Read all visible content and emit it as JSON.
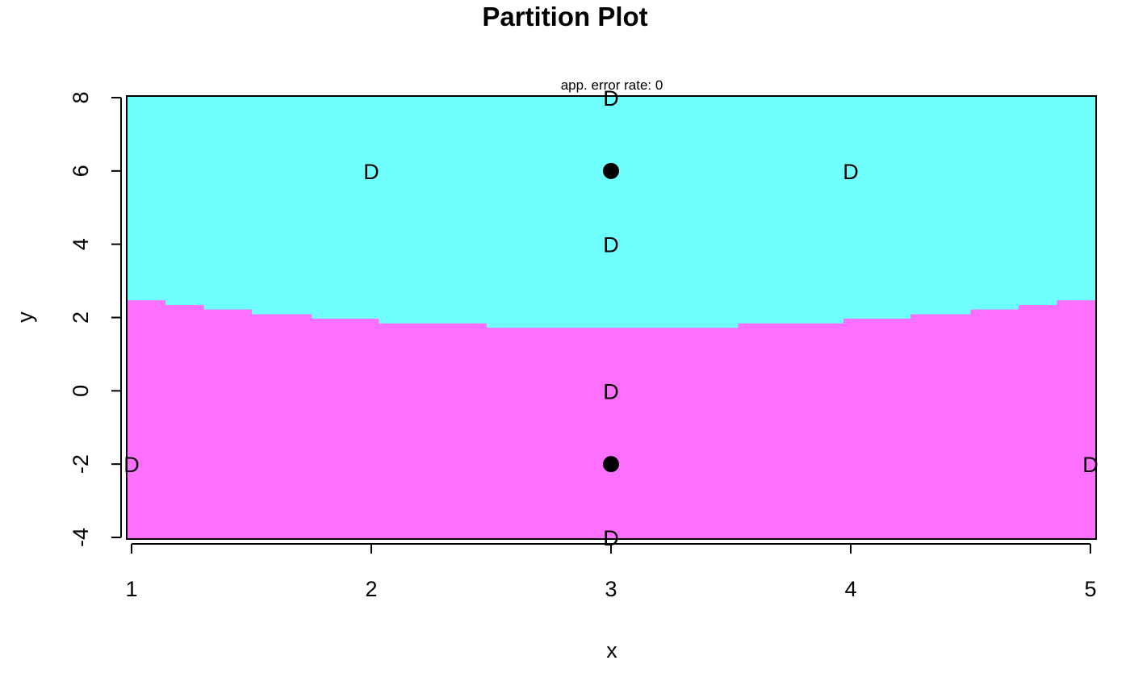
{
  "chart_data": {
    "type": "scatter",
    "title": "Partition Plot",
    "subtitle": "app. error rate: 0",
    "xlabel": "x",
    "ylabel": "y",
    "xlim": [
      1,
      5
    ],
    "ylim": [
      -4,
      8
    ],
    "xticks": [
      1,
      2,
      3,
      4,
      5
    ],
    "yticks": [
      -4,
      -2,
      0,
      2,
      4,
      6,
      8
    ],
    "regions": [
      {
        "name": "upper",
        "color": "#6ffffd"
      },
      {
        "name": "lower",
        "color": "#fd6ffd"
      }
    ],
    "boundary": [
      {
        "x1": 1.0,
        "x2": 1.14,
        "y": 2.47
      },
      {
        "x1": 1.14,
        "x2": 1.3,
        "y": 2.34
      },
      {
        "x1": 1.3,
        "x2": 1.5,
        "y": 2.22
      },
      {
        "x1": 1.5,
        "x2": 1.75,
        "y": 2.09
      },
      {
        "x1": 1.75,
        "x2": 2.03,
        "y": 1.97
      },
      {
        "x1": 2.03,
        "x2": 2.48,
        "y": 1.84
      },
      {
        "x1": 2.48,
        "x2": 3.53,
        "y": 1.72
      },
      {
        "x1": 3.53,
        "x2": 3.97,
        "y": 1.84
      },
      {
        "x1": 3.97,
        "x2": 4.25,
        "y": 1.97
      },
      {
        "x1": 4.25,
        "x2": 4.5,
        "y": 2.09
      },
      {
        "x1": 4.5,
        "x2": 4.7,
        "y": 2.22
      },
      {
        "x1": 4.7,
        "x2": 4.86,
        "y": 2.34
      },
      {
        "x1": 4.86,
        "x2": 5.0,
        "y": 2.47
      }
    ],
    "points": [
      {
        "x": 3,
        "y": 8,
        "label": "D"
      },
      {
        "x": 2,
        "y": 6,
        "label": "D"
      },
      {
        "x": 4,
        "y": 6,
        "label": "D"
      },
      {
        "x": 3,
        "y": 4,
        "label": "D"
      },
      {
        "x": 3,
        "y": 0,
        "label": "D"
      },
      {
        "x": 1,
        "y": -2,
        "label": "D"
      },
      {
        "x": 5,
        "y": -2,
        "label": "D"
      },
      {
        "x": 3,
        "y": -4,
        "label": "D"
      }
    ],
    "centers": [
      {
        "x": 3,
        "y": 6
      },
      {
        "x": 3,
        "y": -2
      }
    ]
  }
}
